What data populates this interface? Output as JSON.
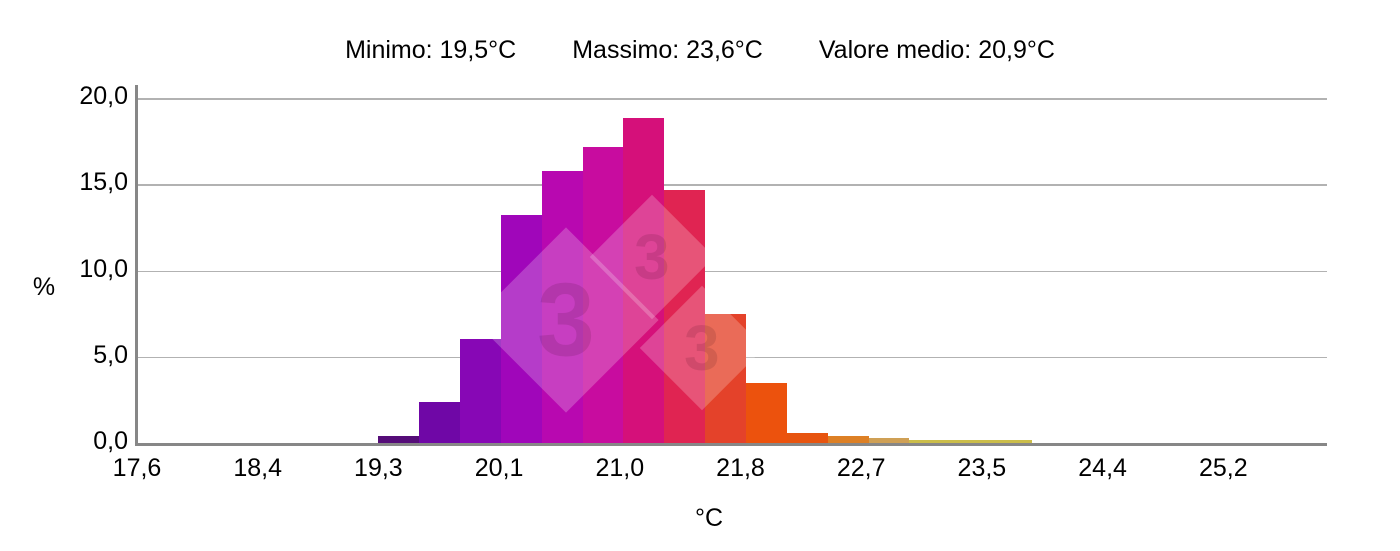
{
  "header": {
    "items": [
      "Minimo: 19,5°C",
      "Massimo: 23,6°C",
      "Valore medio: 20,9°C"
    ]
  },
  "chart_data": {
    "type": "bar",
    "title": "Minimo: 19,5°C  Massimo: 23,6°C  Valore medio: 20,9°C",
    "stats": {
      "minimum_c": "19,5",
      "maximum_c": "23,6",
      "mean_c": "20,9"
    },
    "xlabel": "°C",
    "ylabel": "%",
    "ylim": [
      0,
      20
    ],
    "xlim": [
      17.6,
      26.0
    ],
    "grid": "horizontal-only",
    "legend_position": "none",
    "y_ticks": [
      {
        "v": 20,
        "label": "20,0"
      },
      {
        "v": 15,
        "label": "15,0"
      },
      {
        "v": 10,
        "label": "10,0"
      },
      {
        "v": 5,
        "label": "5,0"
      },
      {
        "v": 0,
        "label": "0,0"
      }
    ],
    "x_ticks": [
      {
        "v": 17.6,
        "label": "17,6"
      },
      {
        "v": 18.45,
        "label": "18,4"
      },
      {
        "v": 19.3,
        "label": "19,3"
      },
      {
        "v": 20.15,
        "label": "20,1"
      },
      {
        "v": 21.0,
        "label": "21,0"
      },
      {
        "v": 21.85,
        "label": "21,8"
      },
      {
        "v": 22.7,
        "label": "22,7"
      },
      {
        "v": 23.55,
        "label": "23,5"
      },
      {
        "v": 24.4,
        "label": "24,4"
      },
      {
        "v": 25.25,
        "label": "25,2"
      }
    ],
    "bins": [
      {
        "t0": 19.3,
        "t1": 19.588,
        "pct": 0.4,
        "color": "#550d78"
      },
      {
        "t0": 19.588,
        "t1": 19.875,
        "pct": 2.35,
        "color": "#6f07a6"
      },
      {
        "t0": 19.875,
        "t1": 20.163,
        "pct": 6.05,
        "color": "#8707b5"
      },
      {
        "t0": 20.163,
        "t1": 20.451,
        "pct": 13.2,
        "color": "#a006ba"
      },
      {
        "t0": 20.451,
        "t1": 20.739,
        "pct": 15.75,
        "color": "#b808b0"
      },
      {
        "t0": 20.739,
        "t1": 21.026,
        "pct": 17.15,
        "color": "#c80c9f"
      },
      {
        "t0": 21.026,
        "t1": 21.314,
        "pct": 18.85,
        "color": "#d5107a"
      },
      {
        "t0": 21.314,
        "t1": 21.602,
        "pct": 14.65,
        "color": "#e02452"
      },
      {
        "t0": 21.602,
        "t1": 21.889,
        "pct": 7.5,
        "color": "#e4422a"
      },
      {
        "t0": 21.889,
        "t1": 22.177,
        "pct": 3.45,
        "color": "#ec520d"
      },
      {
        "t0": 22.177,
        "t1": 22.465,
        "pct": 0.6,
        "color": "#e7540f"
      },
      {
        "t0": 22.465,
        "t1": 22.752,
        "pct": 0.4,
        "color": "#dd8025"
      },
      {
        "t0": 22.752,
        "t1": 23.04,
        "pct": 0.3,
        "color": "#cfa055"
      },
      {
        "t0": 23.04,
        "t1": 23.328,
        "pct": 0.2,
        "color": "#cbbd4a"
      },
      {
        "t0": 23.328,
        "t1": 23.616,
        "pct": 0.2,
        "color": "#cbbd4a"
      },
      {
        "t0": 23.616,
        "t1": 23.903,
        "pct": 0.2,
        "color": "#cbbd4a"
      }
    ],
    "watermark_glyph": "3",
    "colors": {
      "grid": "#b2b2b2",
      "axis": "#878787",
      "text": "#000000",
      "watermark_fill": "rgba(255,255,255,0.22)"
    }
  }
}
